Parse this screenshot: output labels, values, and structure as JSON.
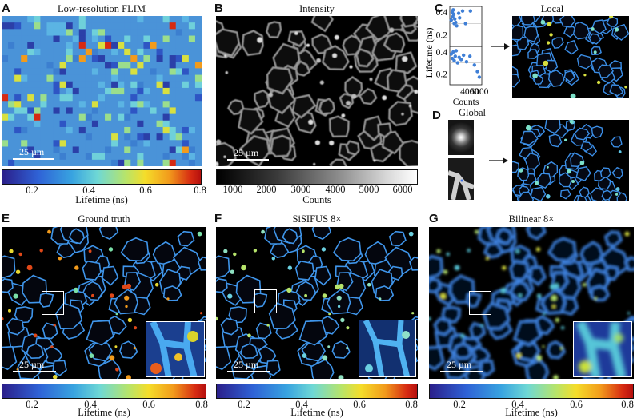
{
  "panels": {
    "A": {
      "letter": "A",
      "title": "Low-resolution FLIM",
      "scalebar": "25 µm"
    },
    "B": {
      "letter": "B",
      "title": "Intensity",
      "scalebar": "25 µm"
    },
    "C": {
      "letter": "C",
      "title": "Local"
    },
    "D": {
      "letter": "D",
      "title": "Global"
    },
    "E": {
      "letter": "E",
      "title": "Ground truth",
      "scalebar": "25 µm"
    },
    "F": {
      "letter": "F",
      "title": "SiSIFUS 8×",
      "scalebar": "25 µm"
    },
    "G": {
      "letter": "G",
      "title": "Bilinear 8×",
      "scalebar": "25 µm"
    }
  },
  "colorbars": {
    "lifetime": {
      "label": "Lifetime (ns)",
      "ticks": [
        "0.2",
        "0.4",
        "0.6",
        "0.8"
      ],
      "tick_values": [
        0.2,
        0.4,
        0.6,
        0.8
      ],
      "range": [
        0.1,
        0.8
      ]
    },
    "counts": {
      "label": "Counts",
      "ticks": [
        "1000",
        "2000",
        "3000",
        "4000",
        "5000",
        "6000"
      ],
      "tick_values": [
        1000,
        2000,
        3000,
        4000,
        5000,
        6000
      ],
      "range": [
        500,
        6500
      ]
    }
  },
  "chart_data": [
    {
      "type": "scatter",
      "ylabel": "Lifetime (ns)",
      "yticks": [
        "0.2",
        "0.4"
      ],
      "ylim": [
        0.1,
        0.45
      ],
      "points": [
        [
          300,
          0.33
        ],
        [
          500,
          0.4
        ],
        [
          600,
          0.36
        ],
        [
          700,
          0.42
        ],
        [
          800,
          0.38
        ],
        [
          900,
          0.3
        ],
        [
          1000,
          0.34
        ],
        [
          1200,
          0.31
        ],
        [
          1400,
          0.28
        ],
        [
          1800,
          0.39
        ],
        [
          2000,
          0.35
        ],
        [
          2600,
          0.41
        ],
        [
          3200,
          0.3
        ],
        [
          4200,
          0.41
        ]
      ]
    },
    {
      "type": "scatter",
      "xlabel": "Counts",
      "xticks": [
        "4000",
        "6000"
      ],
      "yticks": [
        "0.2",
        "0.4"
      ],
      "ylim": [
        0.1,
        0.45
      ],
      "points": [
        [
          300,
          0.38
        ],
        [
          500,
          0.34
        ],
        [
          700,
          0.4
        ],
        [
          900,
          0.32
        ],
        [
          1100,
          0.36
        ],
        [
          1300,
          0.41
        ],
        [
          1600,
          0.3
        ],
        [
          1900,
          0.35
        ],
        [
          2300,
          0.33
        ],
        [
          2800,
          0.37
        ],
        [
          3400,
          0.31
        ],
        [
          4100,
          0.36
        ],
        [
          5000,
          0.28
        ],
        [
          5600,
          0.22
        ],
        [
          6000,
          0.17
        ]
      ]
    }
  ]
}
